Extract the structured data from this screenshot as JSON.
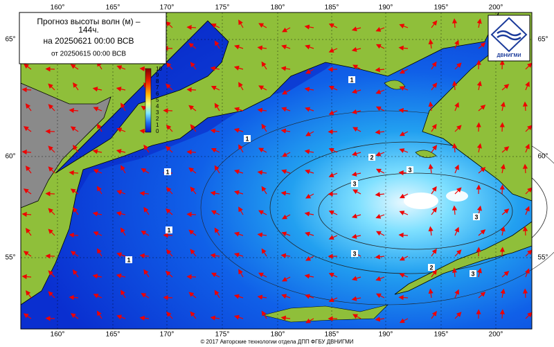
{
  "header": {
    "title_lines": [
      "Прогноз высоты волн (м) –",
      "144ч.",
      "на 20250621 00:00 ВСВ",
      "от 20250615 00:00 ВСВ"
    ]
  },
  "logo": {
    "label": "ДВНИГМИ"
  },
  "axes": {
    "lon_labels": [
      "160°",
      "165°",
      "170°",
      "175°",
      "180°",
      "185°",
      "190°",
      "195°",
      "200°"
    ],
    "lat_labels": [
      "65°",
      "60°",
      "55°"
    ]
  },
  "colorbar": {
    "labels": [
      10,
      9,
      8,
      7,
      6,
      5,
      4,
      3,
      2,
      1,
      0
    ]
  },
  "contour_labels": [
    "1",
    "1",
    "1",
    "1",
    "1",
    "2",
    "2",
    "3",
    "3",
    "3",
    "3",
    "3"
  ],
  "footer": {
    "text": "© 2017 Авторские технологии отдела ДПП ФГБУ ДВНИГМИ"
  }
}
